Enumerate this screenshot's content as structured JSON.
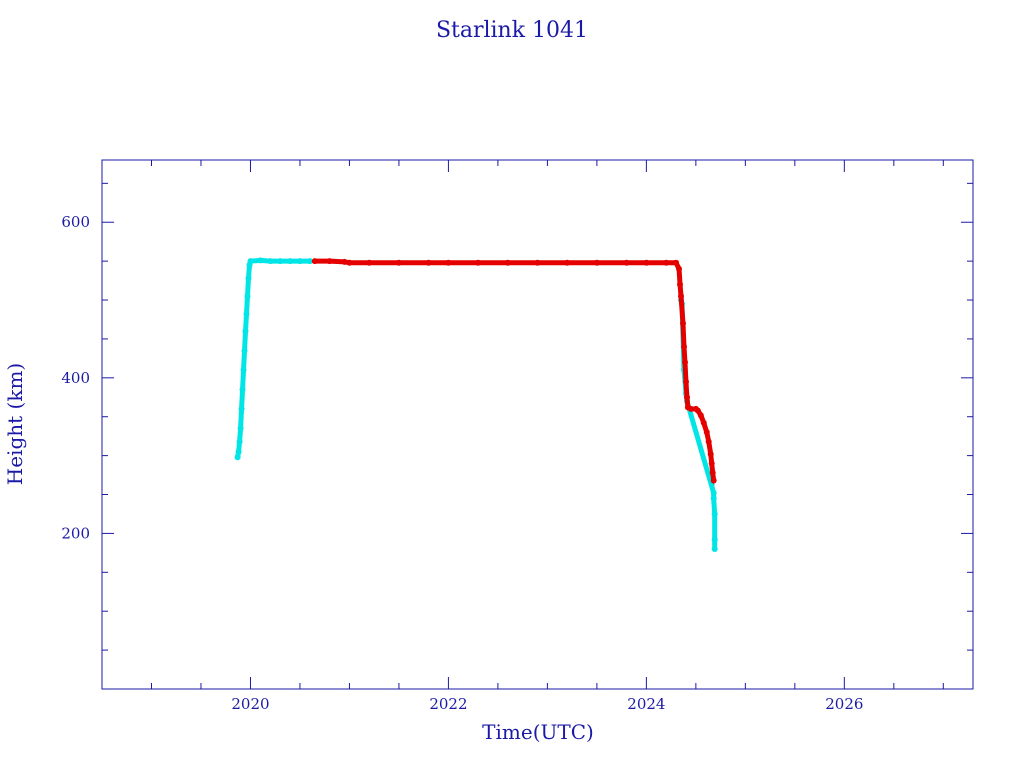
{
  "chart_data": {
    "type": "scatter",
    "title": "Starlink 1041",
    "xlabel": "Time(UTC)",
    "ylabel": "Height (km)",
    "xlim": [
      2018.5,
      2027.3
    ],
    "ylim": [
      0,
      680
    ],
    "x_major_ticks": [
      2020,
      2022,
      2024,
      2026
    ],
    "x_tick_labels": [
      "2020",
      "2022",
      "2024",
      "2026"
    ],
    "x_minor_step": 0.5,
    "y_major_ticks": [
      200,
      400,
      600
    ],
    "y_tick_labels": [
      "200",
      "400",
      "600"
    ],
    "y_minor_step": 50,
    "grid": false,
    "series": [
      {
        "color": "#00e5e5",
        "line_color": "#1a1aa6",
        "points": [
          [
            2019.87,
            298
          ],
          [
            2019.88,
            305
          ],
          [
            2019.89,
            318
          ],
          [
            2019.9,
            335
          ],
          [
            2019.91,
            360
          ],
          [
            2019.92,
            385
          ],
          [
            2019.93,
            410
          ],
          [
            2019.94,
            435
          ],
          [
            2019.95,
            460
          ],
          [
            2019.96,
            482
          ],
          [
            2019.97,
            505
          ],
          [
            2019.98,
            528
          ],
          [
            2019.99,
            545
          ],
          [
            2020.0,
            550
          ],
          [
            2020.1,
            551
          ],
          [
            2020.2,
            550
          ],
          [
            2020.3,
            550
          ],
          [
            2020.4,
            550
          ],
          [
            2020.5,
            550
          ],
          [
            2020.6,
            550
          ],
          [
            2024.35,
            500
          ],
          [
            2024.36,
            495
          ],
          [
            2024.38,
            410
          ],
          [
            2024.4,
            380
          ],
          [
            2024.41,
            370
          ],
          [
            2024.68,
            252
          ],
          [
            2024.68,
            245
          ],
          [
            2024.69,
            225
          ],
          [
            2024.69,
            192
          ],
          [
            2024.69,
            180
          ]
        ]
      },
      {
        "color": "#e50000",
        "line_color": "#1a1aa6",
        "points": [
          [
            2020.65,
            550
          ],
          [
            2020.8,
            550
          ],
          [
            2020.95,
            549
          ],
          [
            2021.0,
            548
          ],
          [
            2021.2,
            548
          ],
          [
            2021.5,
            548
          ],
          [
            2021.8,
            548
          ],
          [
            2022.0,
            548
          ],
          [
            2022.3,
            548
          ],
          [
            2022.6,
            548
          ],
          [
            2022.9,
            548
          ],
          [
            2023.2,
            548
          ],
          [
            2023.5,
            548
          ],
          [
            2023.8,
            548
          ],
          [
            2024.0,
            548
          ],
          [
            2024.2,
            548
          ],
          [
            2024.3,
            548
          ],
          [
            2024.33,
            540
          ],
          [
            2024.34,
            520
          ],
          [
            2024.35,
            505
          ],
          [
            2024.37,
            470
          ],
          [
            2024.38,
            440
          ],
          [
            2024.39,
            420
          ],
          [
            2024.4,
            395
          ],
          [
            2024.41,
            375
          ],
          [
            2024.42,
            362
          ],
          [
            2024.45,
            360
          ],
          [
            2024.5,
            360
          ],
          [
            2024.52,
            358
          ],
          [
            2024.55,
            352
          ],
          [
            2024.58,
            342
          ],
          [
            2024.61,
            330
          ],
          [
            2024.63,
            318
          ],
          [
            2024.65,
            302
          ],
          [
            2024.66,
            290
          ],
          [
            2024.67,
            278
          ],
          [
            2024.68,
            268
          ]
        ]
      }
    ]
  }
}
